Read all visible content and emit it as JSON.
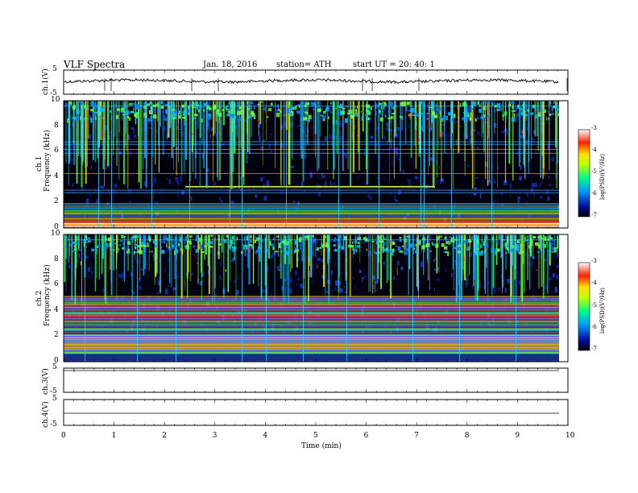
{
  "header": {
    "title": "VLF  Spectra",
    "date": "Jan. 18, 2016",
    "station": "station= ATH",
    "start": "start  UT  =    20: 40: 1"
  },
  "colors": {
    "spectrogram_bg": "#000010",
    "deep_blue": "#10208a",
    "cyan": "#00c8ff",
    "green": "#40ff60",
    "yellow": "#f0f000",
    "red": "#ff2020"
  },
  "chart_data": [
    {
      "type": "line",
      "name": "ch1-waveform",
      "ylabel": "ch.1(V)",
      "ylim": [
        -5,
        5
      ],
      "yticks": [
        "5",
        "-5"
      ],
      "xlim": [
        0,
        10
      ]
    },
    {
      "type": "heatmap",
      "name": "ch1-spectrogram",
      "ylabel_top": "ch.1",
      "ylabel": "Frequency  (kHz)",
      "ylim": [
        0,
        10
      ],
      "yticks": [
        "10",
        "8",
        "6",
        "4",
        "2",
        "0"
      ],
      "colorbar": {
        "label": "log(PSD)(V²/Hz)",
        "ticks": [
          "-3",
          "-4",
          "-5",
          "-6",
          "-7"
        ],
        "range": [
          -7,
          -3
        ]
      }
    },
    {
      "type": "heatmap",
      "name": "ch2-spectrogram",
      "ylabel_top": "ch.2",
      "ylabel": "Frequency  (kHz)",
      "ylim": [
        0,
        10
      ],
      "yticks": [
        "10",
        "8",
        "6",
        "4",
        "2",
        "0"
      ],
      "colorbar": {
        "label": "log(PSD)(V²/Hz)",
        "ticks": [
          "-3",
          "-4",
          "-5",
          "-6",
          "-7"
        ],
        "range": [
          -7,
          -3
        ]
      }
    },
    {
      "type": "line",
      "name": "ch3-waveform",
      "ylabel": "ch.3(V)",
      "ylim": [
        -5,
        5
      ],
      "yticks": [
        "5",
        "-5"
      ]
    },
    {
      "type": "line",
      "name": "ch4-waveform",
      "ylabel": "ch.4(V)",
      "ylim": [
        -5,
        5
      ],
      "yticks": [
        "5",
        "-5"
      ]
    }
  ],
  "xaxis": {
    "label": "Time  (min)",
    "ticks": [
      "0",
      "1",
      "2",
      "3",
      "4",
      "5",
      "6",
      "7",
      "8",
      "9",
      "10"
    ],
    "xlim": [
      0,
      10
    ]
  }
}
